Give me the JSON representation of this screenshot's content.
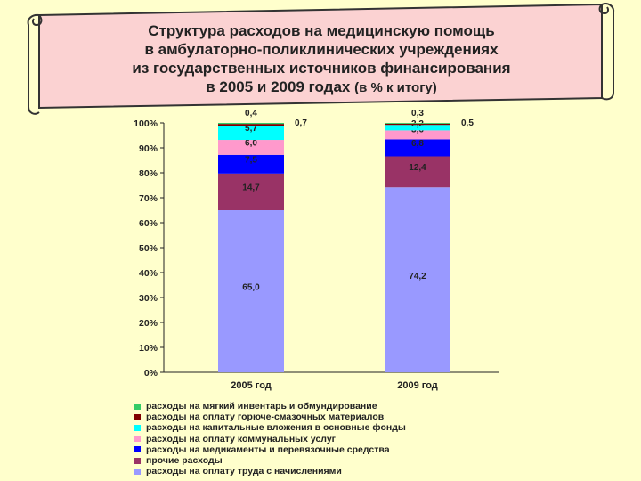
{
  "title": {
    "line1": "Структура расходов на медицинскую помощь",
    "line2": "в амбулаторно-поликлинических учреждениях",
    "line3": "из государственных источников финансирования",
    "line4_main": "в 2005 и 2009 годах",
    "line4_suffix": "(в % к итогу)"
  },
  "colors": {
    "background": "#ffffcc",
    "banner_fill": "#fbd2d2",
    "banner_stroke": "#333333"
  },
  "chart_data": {
    "type": "bar",
    "stacked": true,
    "categories": [
      "2005 год",
      "2009 год"
    ],
    "ylim": [
      0,
      100
    ],
    "yticks": [
      "0%",
      "10%",
      "20%",
      "30%",
      "40%",
      "50%",
      "60%",
      "70%",
      "80%",
      "90%",
      "100%"
    ],
    "grid": false,
    "legend_position": "bottom",
    "series": [
      {
        "name": "расходы на оплату труда с начислениями",
        "color": "#9999ff",
        "values": [
          65.0,
          74.2
        ],
        "labels": [
          "65,0",
          "74,2"
        ]
      },
      {
        "name": "прочие расходы",
        "color": "#993366",
        "values": [
          14.7,
          12.4
        ],
        "labels": [
          "14,7",
          "12,4"
        ]
      },
      {
        "name": "расходы на медикаменты и перевязочные средства",
        "color": "#0000ff",
        "values": [
          7.5,
          6.8
        ],
        "labels": [
          "7,5",
          "6,8"
        ]
      },
      {
        "name": "расходы на оплату коммунальных услуг",
        "color": "#ff99cc",
        "values": [
          6.0,
          3.6
        ],
        "labels": [
          "6,0",
          "3,6"
        ]
      },
      {
        "name": "расходы на капитальные вложения в основные фонды",
        "color": "#00ffff",
        "values": [
          5.7,
          2.2
        ],
        "labels": [
          "5,7",
          "2,2"
        ]
      },
      {
        "name": "расходы на оплату горюче-смазочных материалов",
        "color": "#800000",
        "values": [
          0.7,
          0.5
        ],
        "labels": [
          "0,7",
          "0,5"
        ]
      },
      {
        "name": "расходы на мягкий инвентарь и обмундирование",
        "color": "#33cc66",
        "values": [
          0.4,
          0.3
        ],
        "labels": [
          "0,4",
          "0,3"
        ]
      }
    ]
  }
}
